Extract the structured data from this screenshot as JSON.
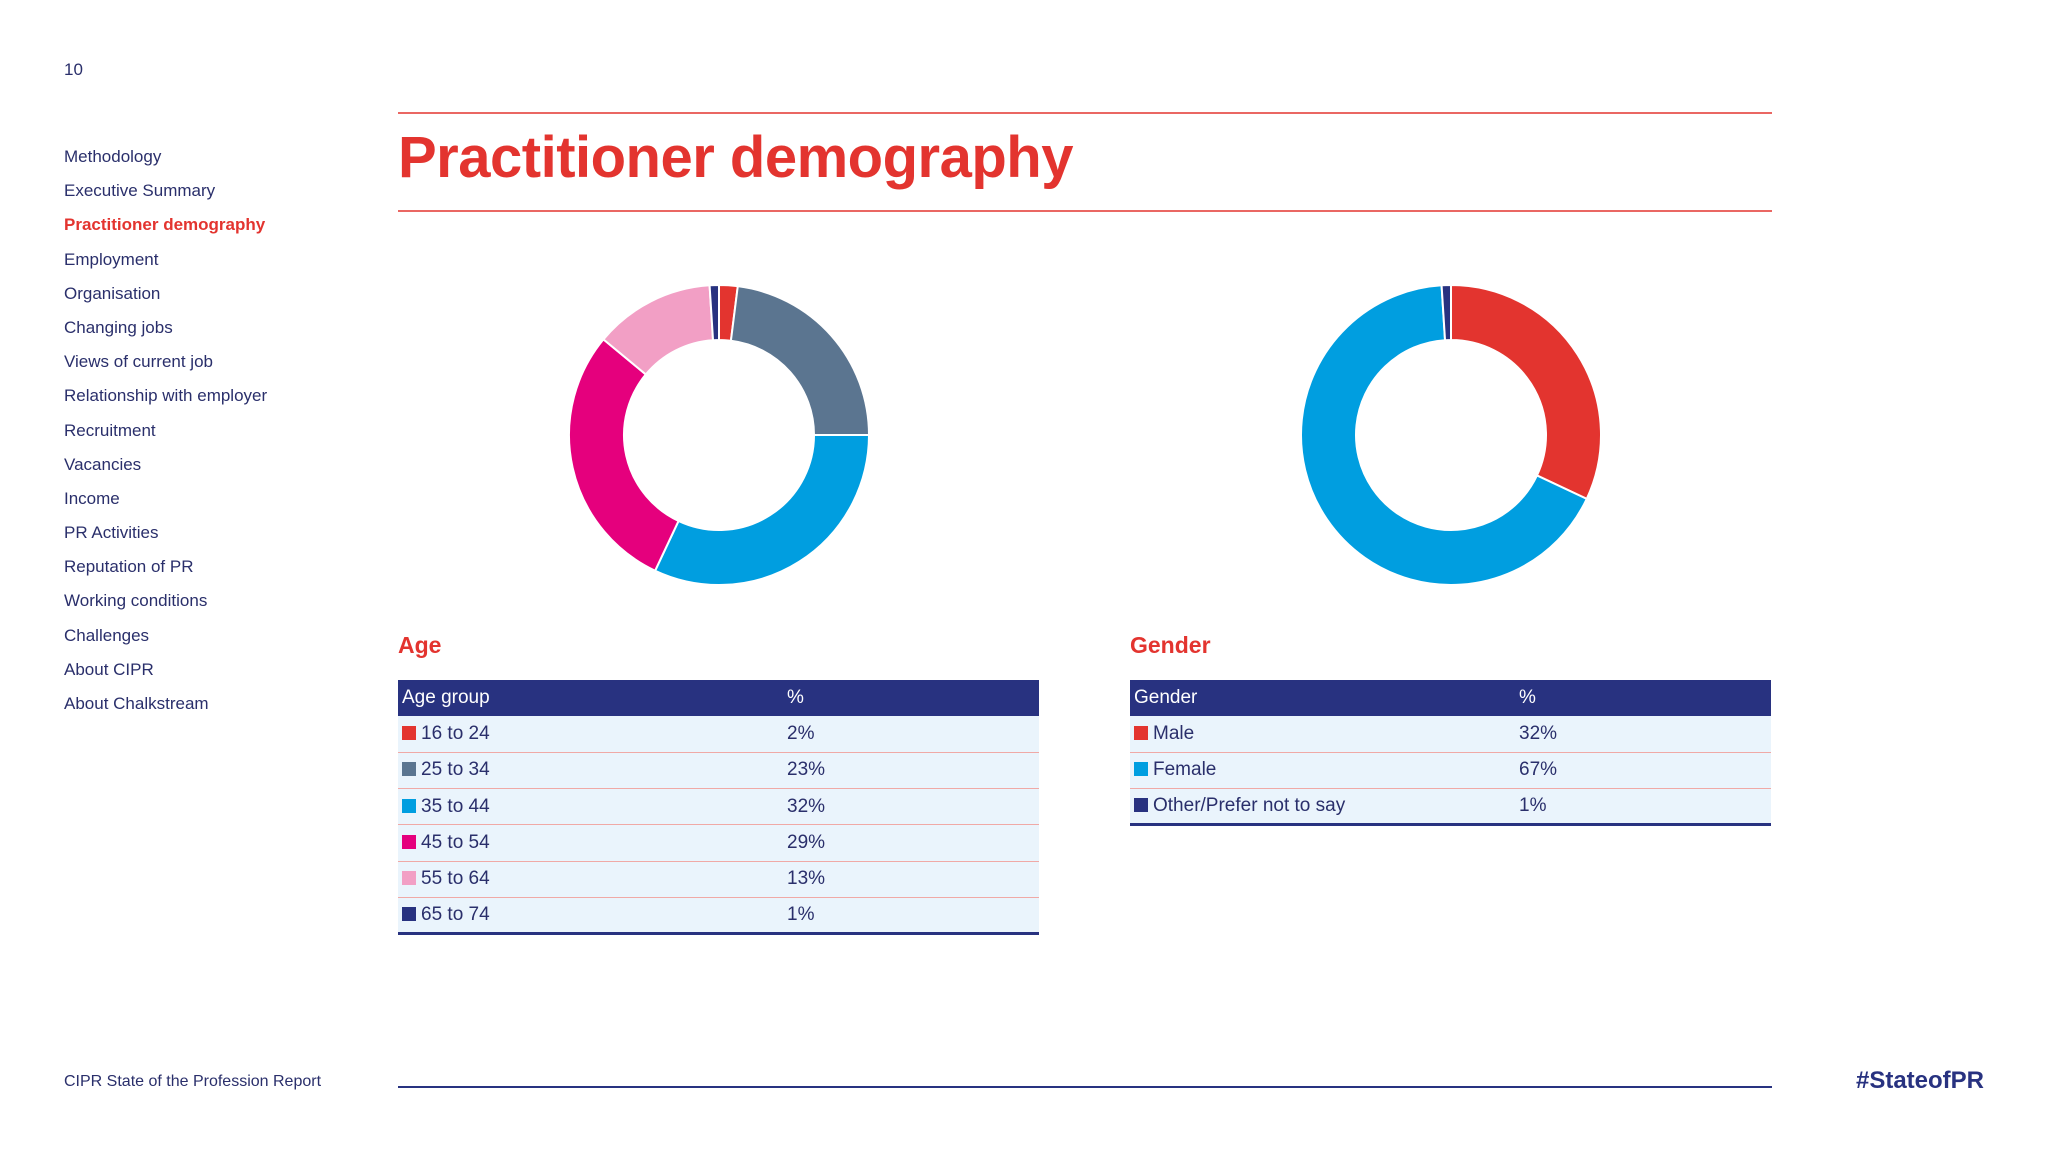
{
  "page_number": "10",
  "nav": [
    "Methodology",
    "Executive Summary",
    "Practitioner demography",
    "Employment",
    "Organisation",
    "Changing jobs",
    "Views of current job",
    "Relationship with employer",
    "Recruitment",
    "Vacancies",
    "Income",
    "PR Activities",
    "Reputation of PR",
    "Working conditions",
    "Challenges",
    "About CIPR",
    "About Chalkstream"
  ],
  "nav_active": 2,
  "title": "Practitioner demography",
  "chart_data": [
    {
      "type": "pie",
      "title": "Age",
      "donut": true,
      "categories": [
        "16 to 24",
        "25 to 34",
        "35 to 44",
        "45 to 54",
        "55 to 64",
        "65 to 74"
      ],
      "values": [
        2,
        23,
        32,
        29,
        13,
        1
      ],
      "colors": [
        "#e3342f",
        "#5b7590",
        "#009ee0",
        "#e5007d",
        "#f29fc5",
        "#283280"
      ]
    },
    {
      "type": "pie",
      "title": "Gender",
      "donut": true,
      "categories": [
        "Male",
        "Female",
        "Other/Prefer not to say"
      ],
      "values": [
        32,
        67,
        1
      ],
      "colors": [
        "#e3342f",
        "#009ee0",
        "#283280"
      ]
    }
  ],
  "age_section": {
    "heading": "Age",
    "col1": "Age group",
    "col2": "%",
    "rows": [
      {
        "label": "16 to 24",
        "value": "2%"
      },
      {
        "label": "25 to 34",
        "value": "23%"
      },
      {
        "label": "35 to 44",
        "value": "32%"
      },
      {
        "label": "45 to 54",
        "value": "29%"
      },
      {
        "label": "55 to 64",
        "value": "13%"
      },
      {
        "label": "65 to 74",
        "value": "1%"
      }
    ]
  },
  "gender_section": {
    "heading": "Gender",
    "col1": "Gender",
    "col2": "%",
    "rows": [
      {
        "label": "Male",
        "value": "32%"
      },
      {
        "label": "Female",
        "value": "67%"
      },
      {
        "label": "Other/Prefer not to say",
        "value": "1%"
      }
    ]
  },
  "footer": {
    "report_name": "CIPR State of the Profession Report",
    "hashtag": "#StateofPR"
  },
  "colors": {
    "accent_red": "#e3342f",
    "navy": "#283280",
    "row_bg": "#eaf4fc"
  }
}
